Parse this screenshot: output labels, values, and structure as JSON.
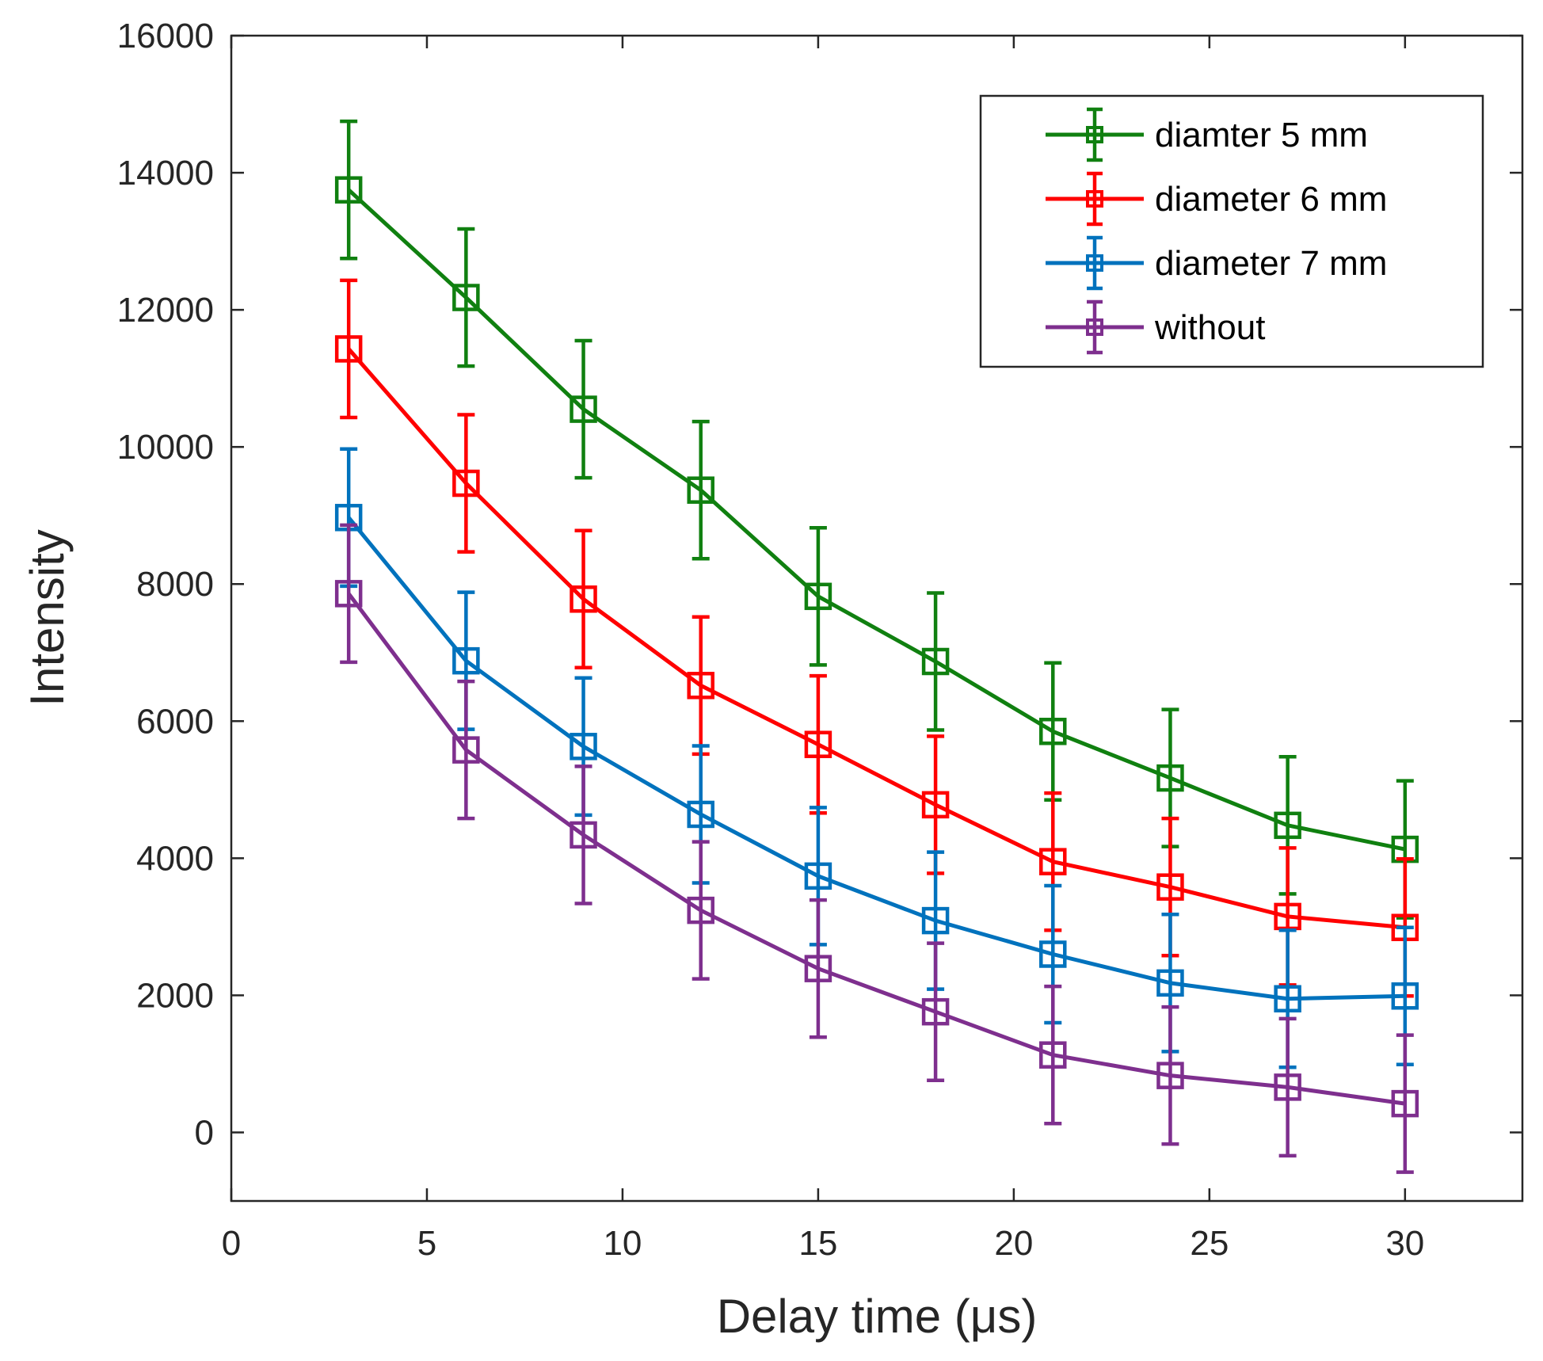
{
  "chart_data": {
    "type": "line",
    "title": "",
    "xlabel": "Delay time (μs)",
    "ylabel": "Intensity",
    "xlim": [
      0,
      33
    ],
    "ylim": [
      -1000,
      16000
    ],
    "xticks": [
      0,
      5,
      10,
      15,
      20,
      25,
      30
    ],
    "yticks": [
      0,
      2000,
      4000,
      6000,
      8000,
      10000,
      12000,
      14000,
      16000
    ],
    "xtick_labels": [
      "0",
      "5",
      "10",
      "15",
      "20",
      "25",
      "30"
    ],
    "ytick_labels": [
      "0",
      "2000",
      "4000",
      "6000",
      "8000",
      "10000",
      "12000",
      "14000",
      "16000"
    ],
    "grid": false,
    "marker": "square",
    "error_bars": true,
    "legend_position": "top-right",
    "x": [
      3,
      6,
      9,
      12,
      15,
      18,
      21,
      24,
      27,
      30
    ],
    "series": [
      {
        "name": "diamter 5 mm",
        "color": "#108010",
        "values": [
          13750,
          12180,
          10550,
          9370,
          7820,
          6870,
          5850,
          5170,
          4480,
          4130
        ],
        "error": [
          1000,
          1000,
          1000,
          1000,
          1000,
          1000,
          1000,
          1000,
          1000,
          1000
        ]
      },
      {
        "name": "diameter 6 mm",
        "color": "#ff0000",
        "values": [
          11430,
          9470,
          7780,
          6520,
          5660,
          4780,
          3950,
          3580,
          3150,
          2990
        ],
        "error": [
          1000,
          1000,
          1000,
          1000,
          1000,
          1000,
          1000,
          1000,
          1000,
          1000
        ]
      },
      {
        "name": "diameter 7 mm",
        "color": "#0072bd",
        "values": [
          8970,
          6880,
          5630,
          4640,
          3740,
          3090,
          2600,
          2180,
          1950,
          1990
        ],
        "error": [
          1000,
          1000,
          1000,
          1000,
          1000,
          1000,
          1000,
          1000,
          1000,
          1000
        ]
      },
      {
        "name": "without",
        "color": "#7e2f8e",
        "values": [
          7860,
          5580,
          4340,
          3240,
          2390,
          1760,
          1130,
          830,
          660,
          420
        ],
        "error": [
          1000,
          1000,
          1000,
          1000,
          1000,
          1000,
          1000,
          1000,
          1000,
          1000
        ]
      }
    ]
  }
}
